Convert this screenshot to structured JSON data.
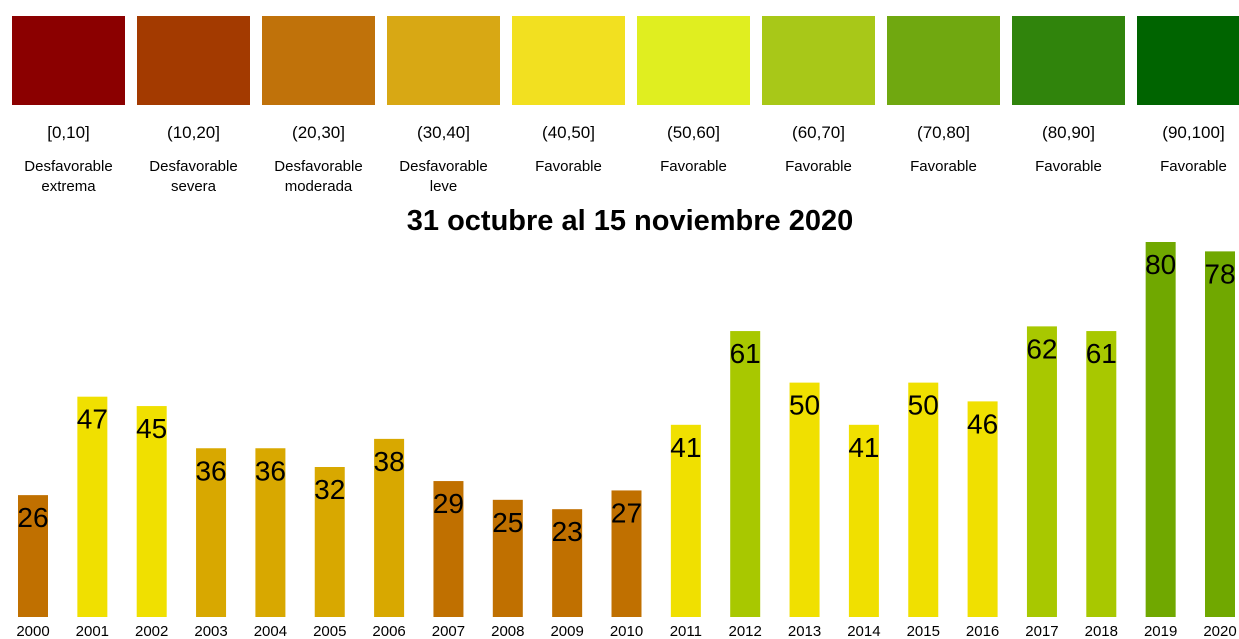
{
  "chart_data": {
    "type": "bar",
    "title": "31 octubre al 15 noviembre 2020",
    "legend": [
      {
        "range": "[0,10]",
        "label": "Desfavorable extrema",
        "color": "#8b0000"
      },
      {
        "range": "(10,20]",
        "label": "Desfavorable severa",
        "color": "#a33a00"
      },
      {
        "range": "(20,30]",
        "label": "Desfavorable moderada",
        "color": "#c0720a"
      },
      {
        "range": "(30,40]",
        "label": "Desfavorable leve",
        "color": "#d8a814"
      },
      {
        "range": "(40,50]",
        "label": "Favorable",
        "color": "#f2e020"
      },
      {
        "range": "(50,60]",
        "label": "Favorable",
        "color": "#e0ee20"
      },
      {
        "range": "(60,70]",
        "label": "Favorable",
        "color": "#a8c818"
      },
      {
        "range": "(70,80]",
        "label": "Favorable",
        "color": "#70a810"
      },
      {
        "range": "(80,90]",
        "label": "Favorable",
        "color": "#30840c"
      },
      {
        "range": "(90,100]",
        "label": "Favorable",
        "color": "#006400"
      }
    ],
    "categories": [
      "2000",
      "2001",
      "2002",
      "2003",
      "2004",
      "2005",
      "2006",
      "2007",
      "2008",
      "2009",
      "2010",
      "2011",
      "2012",
      "2013",
      "2014",
      "2015",
      "2016",
      "2017",
      "2018",
      "2019",
      "2020"
    ],
    "values": [
      26,
      47,
      45,
      36,
      36,
      32,
      38,
      29,
      25,
      23,
      27,
      41,
      61,
      50,
      41,
      50,
      46,
      62,
      61,
      80,
      78
    ],
    "colors": [
      "#c07000",
      "#f0e000",
      "#f0e000",
      "#d8a800",
      "#d8a800",
      "#d8a800",
      "#d8a800",
      "#c07000",
      "#c07000",
      "#c07000",
      "#c07000",
      "#f0e000",
      "#a8c800",
      "#f0e000",
      "#f0e000",
      "#f0e000",
      "#f0e000",
      "#a8c800",
      "#a8c800",
      "#70a800",
      "#70a800"
    ],
    "ylim": [
      0,
      80
    ]
  }
}
